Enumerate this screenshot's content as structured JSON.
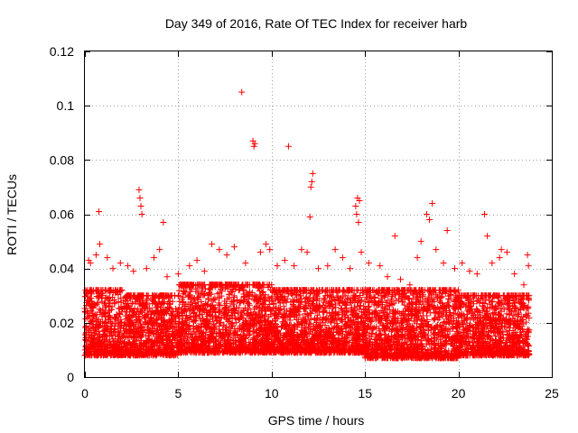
{
  "chart_data": {
    "type": "scatter",
    "title": "Day 349 of 2016, Rate Of TEC Index for receiver harb",
    "xlabel": "GPS time / hours",
    "ylabel": "ROTI / TECUs",
    "xlim": [
      0,
      25
    ],
    "ylim": [
      0,
      0.12
    ],
    "xticks": [
      "0",
      "5",
      "10",
      "15",
      "20",
      "25"
    ],
    "yticks": [
      "0",
      "0.02",
      "0.04",
      "0.06",
      "0.08",
      "0.1",
      "0.12"
    ],
    "grid": true,
    "marker": "+",
    "color": "#ff0000",
    "series": [
      {
        "name": "",
        "points": [
          [
            8.4,
            0.105
          ],
          [
            9.0,
            0.087
          ],
          [
            9.05,
            0.085
          ],
          [
            9.1,
            0.086
          ],
          [
            10.9,
            0.085
          ],
          [
            12.2,
            0.075
          ],
          [
            12.15,
            0.072
          ],
          [
            12.1,
            0.07
          ],
          [
            12.05,
            0.059
          ],
          [
            14.6,
            0.066
          ],
          [
            14.7,
            0.065
          ],
          [
            14.5,
            0.063
          ],
          [
            14.55,
            0.06
          ],
          [
            14.65,
            0.057
          ],
          [
            18.6,
            0.064
          ],
          [
            18.3,
            0.06
          ],
          [
            18.45,
            0.058
          ],
          [
            21.4,
            0.06
          ],
          [
            2.9,
            0.069
          ],
          [
            2.95,
            0.066
          ],
          [
            3.0,
            0.063
          ],
          [
            3.05,
            0.06
          ],
          [
            0.75,
            0.061
          ],
          [
            4.2,
            0.057
          ],
          [
            16.6,
            0.052
          ],
          [
            19.4,
            0.054
          ],
          [
            21.55,
            0.052
          ],
          [
            22.3,
            0.047
          ],
          [
            23.7,
            0.045
          ],
          [
            23.75,
            0.041
          ],
          [
            0.2,
            0.043
          ],
          [
            0.3,
            0.042
          ],
          [
            0.6,
            0.045
          ],
          [
            0.8,
            0.049
          ],
          [
            1.2,
            0.044
          ],
          [
            1.5,
            0.04
          ],
          [
            1.9,
            0.042
          ],
          [
            2.3,
            0.041
          ],
          [
            2.6,
            0.039
          ],
          [
            3.3,
            0.04
          ],
          [
            3.7,
            0.044
          ],
          [
            4.0,
            0.047
          ],
          [
            4.4,
            0.037
          ],
          [
            5.0,
            0.038
          ],
          [
            5.6,
            0.041
          ],
          [
            6.0,
            0.043
          ],
          [
            6.4,
            0.039
          ],
          [
            6.8,
            0.049
          ],
          [
            7.2,
            0.047
          ],
          [
            7.6,
            0.045
          ],
          [
            8.0,
            0.048
          ],
          [
            8.6,
            0.042
          ],
          [
            9.4,
            0.046
          ],
          [
            9.7,
            0.049
          ],
          [
            9.9,
            0.047
          ],
          [
            10.3,
            0.041
          ],
          [
            10.7,
            0.043
          ],
          [
            11.2,
            0.041
          ],
          [
            11.6,
            0.047
          ],
          [
            11.9,
            0.046
          ],
          [
            12.5,
            0.04
          ],
          [
            13.0,
            0.041
          ],
          [
            13.4,
            0.047
          ],
          [
            13.8,
            0.044
          ],
          [
            14.2,
            0.04
          ],
          [
            14.8,
            0.046
          ],
          [
            15.2,
            0.042
          ],
          [
            15.8,
            0.041
          ],
          [
            16.2,
            0.037
          ],
          [
            16.9,
            0.036
          ],
          [
            17.4,
            0.034
          ],
          [
            17.8,
            0.044
          ],
          [
            18.0,
            0.05
          ],
          [
            18.8,
            0.047
          ],
          [
            19.2,
            0.042
          ],
          [
            19.8,
            0.04
          ],
          [
            20.2,
            0.042
          ],
          [
            20.6,
            0.039
          ],
          [
            21.0,
            0.038
          ],
          [
            21.8,
            0.042
          ],
          [
            22.2,
            0.044
          ],
          [
            22.6,
            0.046
          ],
          [
            23.0,
            0.038
          ],
          [
            23.5,
            0.034
          ]
        ],
        "dense_band": [
          {
            "x_from": 0.0,
            "x_to": 2.0,
            "y_from": 0.004,
            "y_to": 0.032
          },
          {
            "x_from": 2.0,
            "x_to": 5.0,
            "y_from": 0.004,
            "y_to": 0.03
          },
          {
            "x_from": 5.0,
            "x_to": 10.0,
            "y_from": 0.005,
            "y_to": 0.034
          },
          {
            "x_from": 10.0,
            "x_to": 15.0,
            "y_from": 0.005,
            "y_to": 0.032
          },
          {
            "x_from": 15.0,
            "x_to": 20.0,
            "y_from": 0.003,
            "y_to": 0.032
          },
          {
            "x_from": 20.0,
            "x_to": 23.8,
            "y_from": 0.004,
            "y_to": 0.03
          }
        ]
      }
    ]
  }
}
